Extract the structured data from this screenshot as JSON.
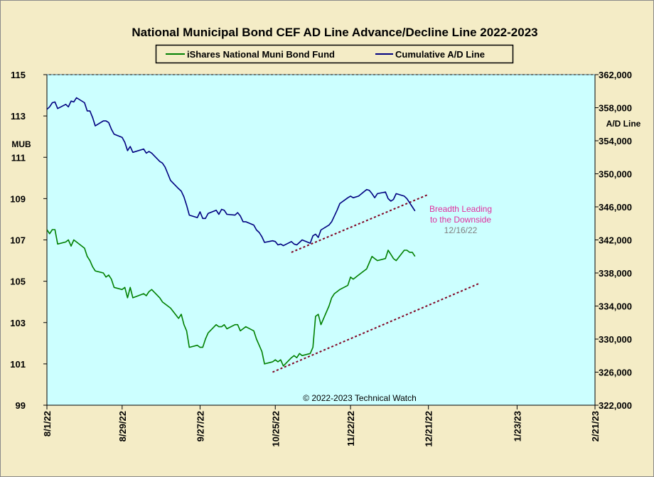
{
  "chart_data": {
    "type": "line",
    "title": "National Municipal Bond CEF AD Line Advance/Decline Line 2022-2023",
    "left_axis": {
      "label": "MUB",
      "ylim": [
        99,
        115
      ],
      "ticks": [
        "99",
        "101",
        "103",
        "105",
        "107",
        "109",
        "111",
        "113",
        "115"
      ]
    },
    "right_axis": {
      "label": "A/D Line",
      "ylim": [
        322000,
        362000
      ],
      "ticks": [
        "322,000",
        "326,000",
        "330,000",
        "334,000",
        "338,000",
        "342,000",
        "346,000",
        "350,000",
        "354,000",
        "358,000",
        "362,000"
      ]
    },
    "x_axis": {
      "ticks": [
        "8/1/22",
        "8/29/22",
        "9/27/22",
        "10/25/22",
        "11/22/22",
        "12/21/22",
        "1/23/23",
        "2/21/23"
      ]
    },
    "legend": {
      "placement": "top-center"
    },
    "grid": false,
    "colors": {
      "plot_bg": "#ccffff",
      "page_bg": "#f4ecc6",
      "mub": "#008000",
      "ad": "#000080",
      "trend": "#800020",
      "annotation": "#e0309e",
      "date_note": "#808080"
    },
    "series": [
      {
        "name": "iShares National Muni Bond Fund",
        "axis": "left",
        "points": [
          [
            "2022-08-01",
            107.5
          ],
          [
            "2022-08-02",
            107.3
          ],
          [
            "2022-08-03",
            107.5
          ],
          [
            "2022-08-04",
            107.5
          ],
          [
            "2022-08-05",
            106.8
          ],
          [
            "2022-08-08",
            106.9
          ],
          [
            "2022-08-09",
            107.0
          ],
          [
            "2022-08-10",
            106.7
          ],
          [
            "2022-08-11",
            107.0
          ],
          [
            "2022-08-12",
            106.9
          ],
          [
            "2022-08-15",
            106.6
          ],
          [
            "2022-08-16",
            106.2
          ],
          [
            "2022-08-17",
            106.0
          ],
          [
            "2022-08-18",
            105.7
          ],
          [
            "2022-08-19",
            105.5
          ],
          [
            "2022-08-22",
            105.4
          ],
          [
            "2022-08-23",
            105.2
          ],
          [
            "2022-08-24",
            105.3
          ],
          [
            "2022-08-25",
            105.1
          ],
          [
            "2022-08-26",
            104.7
          ],
          [
            "2022-08-29",
            104.6
          ],
          [
            "2022-08-30",
            104.7
          ],
          [
            "2022-08-31",
            104.2
          ],
          [
            "2022-09-01",
            104.7
          ],
          [
            "2022-09-02",
            104.2
          ],
          [
            "2022-09-06",
            104.4
          ],
          [
            "2022-09-07",
            104.3
          ],
          [
            "2022-09-08",
            104.5
          ],
          [
            "2022-09-09",
            104.6
          ],
          [
            "2022-09-12",
            104.2
          ],
          [
            "2022-09-13",
            104.0
          ],
          [
            "2022-09-14",
            103.9
          ],
          [
            "2022-09-15",
            103.8
          ],
          [
            "2022-09-16",
            103.7
          ],
          [
            "2022-09-19",
            103.2
          ],
          [
            "2022-09-20",
            103.4
          ],
          [
            "2022-09-21",
            102.9
          ],
          [
            "2022-09-22",
            102.6
          ],
          [
            "2022-09-23",
            101.8
          ],
          [
            "2022-09-26",
            101.9
          ],
          [
            "2022-09-27",
            101.8
          ],
          [
            "2022-09-28",
            101.8
          ],
          [
            "2022-09-29",
            102.2
          ],
          [
            "2022-09-30",
            102.5
          ],
          [
            "2022-10-03",
            102.9
          ],
          [
            "2022-10-04",
            102.8
          ],
          [
            "2022-10-05",
            102.8
          ],
          [
            "2022-10-06",
            102.9
          ],
          [
            "2022-10-07",
            102.7
          ],
          [
            "2022-10-10",
            102.9
          ],
          [
            "2022-10-11",
            102.9
          ],
          [
            "2022-10-12",
            102.6
          ],
          [
            "2022-10-13",
            102.7
          ],
          [
            "2022-10-14",
            102.8
          ],
          [
            "2022-10-17",
            102.6
          ],
          [
            "2022-10-18",
            102.2
          ],
          [
            "2022-10-19",
            101.9
          ],
          [
            "2022-10-20",
            101.6
          ],
          [
            "2022-10-21",
            101.0
          ],
          [
            "2022-10-24",
            101.1
          ],
          [
            "2022-10-25",
            101.2
          ],
          [
            "2022-10-26",
            101.1
          ],
          [
            "2022-10-27",
            101.2
          ],
          [
            "2022-10-28",
            100.9
          ],
          [
            "2022-10-31",
            101.3
          ],
          [
            "2022-11-01",
            101.4
          ],
          [
            "2022-11-02",
            101.3
          ],
          [
            "2022-11-03",
            101.5
          ],
          [
            "2022-11-04",
            101.4
          ],
          [
            "2022-11-07",
            101.5
          ],
          [
            "2022-11-08",
            101.8
          ],
          [
            "2022-11-09",
            103.3
          ],
          [
            "2022-11-10",
            103.4
          ],
          [
            "2022-11-11",
            102.9
          ],
          [
            "2022-11-14",
            103.8
          ],
          [
            "2022-11-15",
            104.2
          ],
          [
            "2022-11-16",
            104.4
          ],
          [
            "2022-11-17",
            104.5
          ],
          [
            "2022-11-18",
            104.6
          ],
          [
            "2022-11-21",
            104.8
          ],
          [
            "2022-11-22",
            105.2
          ],
          [
            "2022-11-23",
            105.1
          ],
          [
            "2022-11-25",
            105.3
          ],
          [
            "2022-11-28",
            105.6
          ],
          [
            "2022-11-29",
            105.9
          ],
          [
            "2022-11-30",
            106.2
          ],
          [
            "2022-12-01",
            106.1
          ],
          [
            "2022-12-02",
            106.0
          ],
          [
            "2022-12-05",
            106.1
          ],
          [
            "2022-12-06",
            106.5
          ],
          [
            "2022-12-07",
            106.3
          ],
          [
            "2022-12-08",
            106.1
          ],
          [
            "2022-12-09",
            106.0
          ],
          [
            "2022-12-12",
            106.5
          ],
          [
            "2022-12-13",
            106.5
          ],
          [
            "2022-12-14",
            106.4
          ],
          [
            "2022-12-15",
            106.4
          ],
          [
            "2022-12-16",
            106.2
          ]
        ]
      },
      {
        "name": "Cumulative A/D Line",
        "axis": "right",
        "points": [
          [
            "2022-08-01",
            357.8
          ],
          [
            "2022-08-02",
            358.1
          ],
          [
            "2022-08-03",
            358.6
          ],
          [
            "2022-08-04",
            358.7
          ],
          [
            "2022-08-05",
            357.9
          ],
          [
            "2022-08-08",
            358.4
          ],
          [
            "2022-08-09",
            358.1
          ],
          [
            "2022-08-10",
            358.8
          ],
          [
            "2022-08-11",
            358.7
          ],
          [
            "2022-08-12",
            359.2
          ],
          [
            "2022-08-15",
            358.6
          ],
          [
            "2022-08-16",
            357.6
          ],
          [
            "2022-08-17",
            357.6
          ],
          [
            "2022-08-18",
            356.8
          ],
          [
            "2022-08-19",
            355.8
          ],
          [
            "2022-08-22",
            356.4
          ],
          [
            "2022-08-23",
            356.4
          ],
          [
            "2022-08-24",
            356.2
          ],
          [
            "2022-08-25",
            355.4
          ],
          [
            "2022-08-26",
            354.8
          ],
          [
            "2022-08-29",
            354.4
          ],
          [
            "2022-08-30",
            353.8
          ],
          [
            "2022-08-31",
            352.8
          ],
          [
            "2022-09-01",
            353.3
          ],
          [
            "2022-09-02",
            352.6
          ],
          [
            "2022-09-06",
            353.0
          ],
          [
            "2022-09-07",
            352.5
          ],
          [
            "2022-09-08",
            352.7
          ],
          [
            "2022-09-09",
            352.5
          ],
          [
            "2022-09-12",
            351.5
          ],
          [
            "2022-09-13",
            351.3
          ],
          [
            "2022-09-14",
            350.8
          ],
          [
            "2022-09-15",
            350.0
          ],
          [
            "2022-09-16",
            349.2
          ],
          [
            "2022-09-19",
            348.2
          ],
          [
            "2022-09-20",
            347.9
          ],
          [
            "2022-09-21",
            347.2
          ],
          [
            "2022-09-22",
            346.2
          ],
          [
            "2022-09-23",
            345.0
          ],
          [
            "2022-09-26",
            344.7
          ],
          [
            "2022-09-27",
            345.4
          ],
          [
            "2022-09-28",
            344.6
          ],
          [
            "2022-09-29",
            344.6
          ],
          [
            "2022-09-30",
            345.2
          ],
          [
            "2022-10-03",
            345.6
          ],
          [
            "2022-10-04",
            345.1
          ],
          [
            "2022-10-05",
            345.7
          ],
          [
            "2022-10-06",
            345.6
          ],
          [
            "2022-10-07",
            345.1
          ],
          [
            "2022-10-10",
            345.0
          ],
          [
            "2022-10-11",
            345.3
          ],
          [
            "2022-10-12",
            344.9
          ],
          [
            "2022-10-13",
            344.2
          ],
          [
            "2022-10-14",
            344.2
          ],
          [
            "2022-10-17",
            343.8
          ],
          [
            "2022-10-18",
            343.2
          ],
          [
            "2022-10-19",
            342.9
          ],
          [
            "2022-10-20",
            342.4
          ],
          [
            "2022-10-21",
            341.7
          ],
          [
            "2022-10-24",
            341.9
          ],
          [
            "2022-10-25",
            341.8
          ],
          [
            "2022-10-26",
            341.4
          ],
          [
            "2022-10-27",
            341.5
          ],
          [
            "2022-10-28",
            341.3
          ],
          [
            "2022-10-31",
            341.8
          ],
          [
            "2022-11-01",
            341.5
          ],
          [
            "2022-11-02",
            341.4
          ],
          [
            "2022-11-03",
            341.7
          ],
          [
            "2022-11-04",
            342.0
          ],
          [
            "2022-11-07",
            341.6
          ],
          [
            "2022-11-08",
            342.5
          ],
          [
            "2022-11-09",
            342.7
          ],
          [
            "2022-11-10",
            342.3
          ],
          [
            "2022-11-11",
            343.2
          ],
          [
            "2022-11-14",
            343.8
          ],
          [
            "2022-11-15",
            344.2
          ],
          [
            "2022-11-16",
            344.9
          ],
          [
            "2022-11-17",
            345.6
          ],
          [
            "2022-11-18",
            346.4
          ],
          [
            "2022-11-21",
            347.1
          ],
          [
            "2022-11-22",
            347.3
          ],
          [
            "2022-11-23",
            347.1
          ],
          [
            "2022-11-25",
            347.3
          ],
          [
            "2022-11-28",
            348.1
          ],
          [
            "2022-11-29",
            348.0
          ],
          [
            "2022-11-30",
            347.6
          ],
          [
            "2022-12-01",
            347.1
          ],
          [
            "2022-12-02",
            347.6
          ],
          [
            "2022-12-05",
            347.8
          ],
          [
            "2022-12-06",
            347.0
          ],
          [
            "2022-12-07",
            346.7
          ],
          [
            "2022-12-08",
            346.9
          ],
          [
            "2022-12-09",
            347.6
          ],
          [
            "2022-12-12",
            347.3
          ],
          [
            "2022-12-13",
            347.0
          ],
          [
            "2022-12-14",
            346.5
          ],
          [
            "2022-12-15",
            346.0
          ],
          [
            "2022-12-16",
            345.5
          ]
        ]
      }
    ],
    "trendlines": [
      {
        "axis": "right",
        "from": [
          "2022-10-31",
          340.5
        ],
        "to": [
          "2022-12-21",
          347.5
        ]
      },
      {
        "axis": "left",
        "from": [
          "2022-10-24",
          100.6
        ],
        "to": [
          "2023-01-09",
          104.9
        ]
      }
    ],
    "annotations": {
      "breadth_line1": "Breadth Leading",
      "breadth_line2": "to the Downside",
      "date": "12/16/22",
      "copyright": "© 2022-2023 Technical Watch"
    }
  }
}
